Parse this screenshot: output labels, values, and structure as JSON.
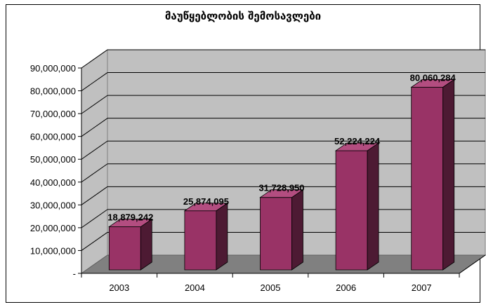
{
  "chart_data": {
    "type": "bar",
    "title": "მაუწყებლობის შემოსავლები",
    "xlabel": "",
    "ylabel": "",
    "categories": [
      "2003",
      "2004",
      "2005",
      "2006",
      "2007"
    ],
    "values": [
      18879242,
      25874095,
      31728950,
      52224224,
      80060284
    ],
    "value_labels": [
      "18,879,242",
      "25,874,095",
      "31,728,950",
      "52,224,224",
      "80,060,284"
    ],
    "ylim": [
      0,
      90000000
    ],
    "y_ticks": [
      0,
      10000000,
      20000000,
      30000000,
      40000000,
      50000000,
      60000000,
      70000000,
      80000000,
      90000000
    ],
    "y_tick_labels": [
      "-",
      "10,000,000",
      "20,000,000",
      "30,000,000",
      "40,000,000",
      "50,000,000",
      "60,000,000",
      "70,000,000",
      "80,000,000",
      "90,000,000"
    ],
    "grid": true,
    "legend": "none",
    "style": "3d-column",
    "colors": {
      "bar_front": "#993366",
      "bar_side": "#4d1a33",
      "bar_top": "#b34d80",
      "wall": "#c0c0c0",
      "floor": "#808080",
      "gridline": "#000000"
    }
  }
}
